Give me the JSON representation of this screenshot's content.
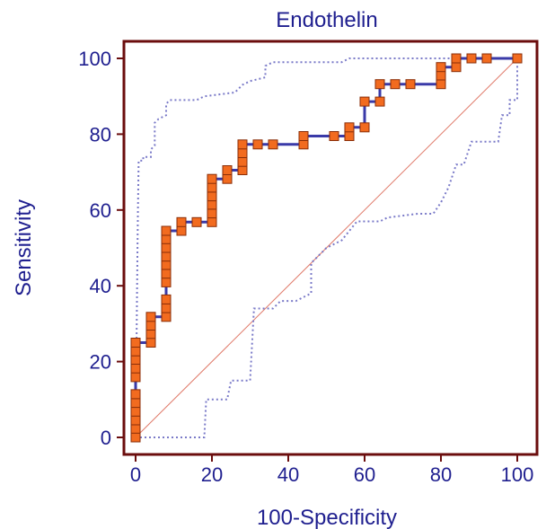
{
  "chart_data": {
    "type": "line",
    "title": "Endothelin",
    "xlabel": "100-Specificity",
    "ylabel": "Sensitivity",
    "xlim": [
      0,
      100
    ],
    "ylim": [
      0,
      100
    ],
    "xticks": [
      "0",
      "20",
      "40",
      "60",
      "80",
      "100"
    ],
    "yticks": [
      "0",
      "20",
      "40",
      "60",
      "80",
      "100"
    ],
    "grid": false,
    "legend": "none",
    "colors": {
      "frame": "#6b0d0d",
      "roc_line": "#3a3aa8",
      "marker_fill": "#f26b1f",
      "marker_edge": "#8a2e08",
      "confidence_band": "#7a7ac8",
      "diagonal": "#e07a6a",
      "text": "#1f1f8f"
    },
    "series": [
      {
        "role": "roc-curve",
        "style": "solid-with-markers",
        "points": [
          [
            0,
            0
          ],
          [
            0,
            2.3
          ],
          [
            0,
            4.5
          ],
          [
            0,
            6.8
          ],
          [
            0,
            9.1
          ],
          [
            0,
            11.4
          ],
          [
            0,
            15.9
          ],
          [
            0,
            18.2
          ],
          [
            0,
            20.5
          ],
          [
            0,
            22.7
          ],
          [
            0,
            25.0
          ],
          [
            4,
            25.0
          ],
          [
            4,
            27.3
          ],
          [
            4,
            29.5
          ],
          [
            4,
            31.8
          ],
          [
            8,
            31.8
          ],
          [
            8,
            34.1
          ],
          [
            8,
            36.4
          ],
          [
            8,
            40.9
          ],
          [
            8,
            43.2
          ],
          [
            8,
            45.5
          ],
          [
            8,
            47.7
          ],
          [
            8,
            50.0
          ],
          [
            8,
            52.3
          ],
          [
            8,
            54.5
          ],
          [
            12,
            54.5
          ],
          [
            12,
            56.8
          ],
          [
            16,
            56.8
          ],
          [
            20,
            56.8
          ],
          [
            20,
            59.1
          ],
          [
            20,
            61.4
          ],
          [
            20,
            63.6
          ],
          [
            20,
            65.9
          ],
          [
            20,
            68.2
          ],
          [
            24,
            68.2
          ],
          [
            24,
            70.5
          ],
          [
            28,
            70.5
          ],
          [
            28,
            72.7
          ],
          [
            28,
            75.0
          ],
          [
            28,
            77.3
          ],
          [
            32,
            77.3
          ],
          [
            36,
            77.3
          ],
          [
            44,
            77.3
          ],
          [
            44,
            79.5
          ],
          [
            52,
            79.5
          ],
          [
            56,
            79.5
          ],
          [
            56,
            81.8
          ],
          [
            60,
            81.8
          ],
          [
            60,
            88.6
          ],
          [
            64,
            88.6
          ],
          [
            64,
            93.2
          ],
          [
            68,
            93.2
          ],
          [
            72,
            93.2
          ],
          [
            80,
            93.2
          ],
          [
            80,
            95.5
          ],
          [
            80,
            97.7
          ],
          [
            84,
            97.7
          ],
          [
            84,
            100
          ],
          [
            88,
            100
          ],
          [
            92,
            100
          ],
          [
            100,
            100
          ]
        ]
      },
      {
        "role": "upper-confidence-bound",
        "style": "dotted",
        "points": [
          [
            0,
            0
          ],
          [
            0.5,
            50
          ],
          [
            0.6,
            60
          ],
          [
            0.8,
            73
          ],
          [
            2,
            73
          ],
          [
            2,
            74
          ],
          [
            4,
            74
          ],
          [
            4,
            76
          ],
          [
            5,
            77
          ],
          [
            5,
            83
          ],
          [
            6,
            84
          ],
          [
            8,
            85
          ],
          [
            8,
            88
          ],
          [
            9,
            89
          ],
          [
            16,
            89
          ],
          [
            18,
            90
          ],
          [
            26,
            91
          ],
          [
            28,
            93
          ],
          [
            30,
            94
          ],
          [
            34,
            95
          ],
          [
            34,
            98
          ],
          [
            36,
            99
          ],
          [
            54,
            99
          ],
          [
            56,
            100
          ],
          [
            100,
            100
          ]
        ]
      },
      {
        "role": "lower-confidence-bound",
        "style": "dotted",
        "points": [
          [
            0,
            0
          ],
          [
            18,
            0
          ],
          [
            18.5,
            10
          ],
          [
            24,
            10
          ],
          [
            25,
            15
          ],
          [
            30,
            15
          ],
          [
            31,
            34
          ],
          [
            36,
            34
          ],
          [
            38,
            36
          ],
          [
            42,
            36
          ],
          [
            46,
            38
          ],
          [
            46,
            46
          ],
          [
            50,
            50
          ],
          [
            54,
            52
          ],
          [
            58,
            57
          ],
          [
            64,
            57
          ],
          [
            66,
            58
          ],
          [
            74,
            59
          ],
          [
            78,
            59
          ],
          [
            80,
            62
          ],
          [
            82,
            66
          ],
          [
            84,
            72
          ],
          [
            86,
            72
          ],
          [
            88,
            78
          ],
          [
            95,
            78
          ],
          [
            96,
            85
          ],
          [
            98,
            85
          ],
          [
            98,
            89
          ],
          [
            100,
            89
          ],
          [
            100,
            100
          ]
        ]
      },
      {
        "role": "chance-diagonal",
        "style": "thin-solid",
        "points": [
          [
            0,
            0
          ],
          [
            100,
            100
          ]
        ]
      }
    ]
  }
}
